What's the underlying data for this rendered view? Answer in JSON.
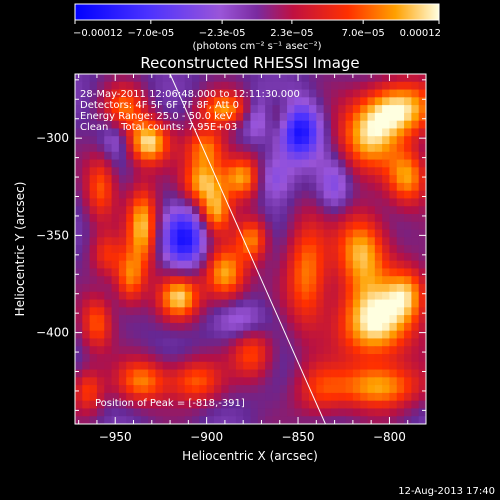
{
  "chart_data": {
    "type": "heatmap",
    "title": "Reconstructed RHESSI Image",
    "xlabel": "Heliocentric X (arcsec)",
    "ylabel": "Heliocentric Y (arcsec)",
    "xlim": [
      -972,
      -780
    ],
    "ylim": [
      -447,
      -267
    ],
    "x_ticks": [
      -950,
      -900,
      -850,
      -800
    ],
    "y_ticks": [
      -300,
      -350,
      -400
    ],
    "colorbar": {
      "min": -0.00012,
      "max": 0.00012,
      "tick_values": [
        -0.00012,
        -7e-05,
        -2.3e-05,
        2.3e-05,
        7e-05,
        0.00012
      ],
      "tick_labels": [
        "-0.00012",
        "-7.0e-05",
        "-2.3e-05",
        "2.3e-05",
        "7.0e-05",
        "0.00012"
      ],
      "unit_label": "(photons cm⁻² s⁻¹ asec⁻²)"
    },
    "info_lines": [
      "28-May-2011 12:06:48.000 to 12:11:30.000",
      "Detectors: 4F 5F 6F 7F 8F, Att 0",
      "Energy Range: 25.0 - 50.0 keV",
      "Clean    Total counts: 7.95E+03"
    ],
    "peak_label": "Position of Peak = [-818,-391]",
    "peak": {
      "x": -818,
      "y": -391
    },
    "limb_line": [
      [
        -920,
        -267
      ],
      [
        -835,
        -447
      ]
    ],
    "sources": [
      {
        "x": -795,
        "y": -285,
        "value": 0.00011,
        "sx": 14,
        "sy": 10
      },
      {
        "x": -812,
        "y": -300,
        "value": 9e-05,
        "sx": 12,
        "sy": 12
      },
      {
        "x": -790,
        "y": -320,
        "value": 9e-05,
        "sx": 8,
        "sy": 10
      },
      {
        "x": -808,
        "y": -395,
        "value": 0.00012,
        "sx": 14,
        "sy": 14
      },
      {
        "x": -815,
        "y": -358,
        "value": 0.0001,
        "sx": 10,
        "sy": 14
      },
      {
        "x": -790,
        "y": -380,
        "value": 8e-05,
        "sx": 8,
        "sy": 10
      },
      {
        "x": -806,
        "y": -428,
        "value": 9e-05,
        "sx": 16,
        "sy": 8
      },
      {
        "x": -845,
        "y": -370,
        "value": 8e-05,
        "sx": 8,
        "sy": 20
      },
      {
        "x": -838,
        "y": -430,
        "value": 5e-05,
        "sx": 10,
        "sy": 10
      },
      {
        "x": -932,
        "y": -302,
        "value": 0.00011,
        "sx": 8,
        "sy": 8
      },
      {
        "x": -945,
        "y": -285,
        "value": 7e-05,
        "sx": 8,
        "sy": 8
      },
      {
        "x": -935,
        "y": -345,
        "value": 0.0001,
        "sx": 6,
        "sy": 14
      },
      {
        "x": -942,
        "y": -372,
        "value": 8e-05,
        "sx": 6,
        "sy": 10
      },
      {
        "x": -915,
        "y": -382,
        "value": 0.0001,
        "sx": 8,
        "sy": 8
      },
      {
        "x": -890,
        "y": -370,
        "value": 0.0001,
        "sx": 8,
        "sy": 10
      },
      {
        "x": -880,
        "y": -320,
        "value": 0.0001,
        "sx": 8,
        "sy": 8
      },
      {
        "x": -895,
        "y": -338,
        "value": 8e-05,
        "sx": 6,
        "sy": 8
      },
      {
        "x": -902,
        "y": -323,
        "value": 9e-05,
        "sx": 8,
        "sy": 8
      },
      {
        "x": -900,
        "y": -305,
        "value": 8e-05,
        "sx": 8,
        "sy": 8
      },
      {
        "x": -875,
        "y": -352,
        "value": 8e-05,
        "sx": 6,
        "sy": 8
      },
      {
        "x": -890,
        "y": -285,
        "value": 8e-05,
        "sx": 10,
        "sy": 6
      },
      {
        "x": -935,
        "y": -425,
        "value": 8e-05,
        "sx": 10,
        "sy": 8
      },
      {
        "x": -906,
        "y": -425,
        "value": 7e-05,
        "sx": 10,
        "sy": 8
      },
      {
        "x": -875,
        "y": -410,
        "value": 7e-05,
        "sx": 8,
        "sy": 10
      },
      {
        "x": -960,
        "y": -395,
        "value": 7e-05,
        "sx": 6,
        "sy": 10
      },
      {
        "x": -965,
        "y": -430,
        "value": 6e-05,
        "sx": 6,
        "sy": 8
      },
      {
        "x": -958,
        "y": -325,
        "value": 7e-05,
        "sx": 6,
        "sy": 12
      },
      {
        "x": -955,
        "y": -360,
        "value": 5e-05,
        "sx": 6,
        "sy": 8
      },
      {
        "x": -860,
        "y": -290,
        "value": 5e-05,
        "sx": 8,
        "sy": 8
      },
      {
        "x": -850,
        "y": -296,
        "value": -0.00012,
        "sx": 8,
        "sy": 10
      },
      {
        "x": -912,
        "y": -352,
        "value": -0.0001,
        "sx": 8,
        "sy": 10
      },
      {
        "x": -865,
        "y": -320,
        "value": -5e-05,
        "sx": 8,
        "sy": 8
      },
      {
        "x": -872,
        "y": -290,
        "value": -5e-05,
        "sx": 6,
        "sy": 8
      },
      {
        "x": -880,
        "y": -395,
        "value": -4e-05,
        "sx": 10,
        "sy": 8
      },
      {
        "x": -950,
        "y": -300,
        "value": -3e-05,
        "sx": 6,
        "sy": 8
      },
      {
        "x": -830,
        "y": -325,
        "value": -4e-05,
        "sx": 6,
        "sy": 10
      }
    ]
  },
  "footer": {
    "timestamp": "12-Aug-2013 17:40"
  },
  "colors": {
    "background": "#000000",
    "axis": "#ffffff",
    "limb_line": "#ffffff"
  }
}
